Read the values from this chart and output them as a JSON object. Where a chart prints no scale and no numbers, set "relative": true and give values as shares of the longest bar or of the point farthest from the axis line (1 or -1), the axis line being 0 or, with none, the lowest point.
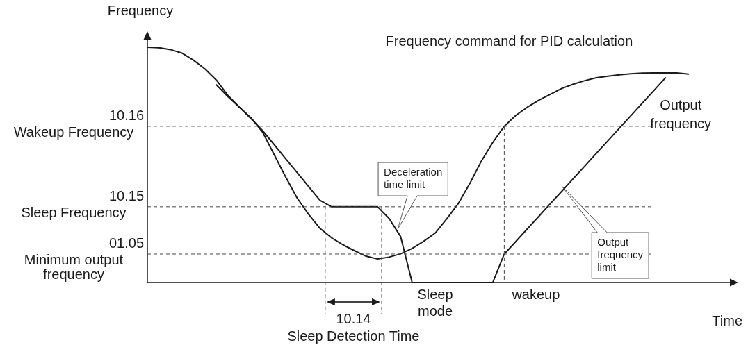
{
  "chart_data": {
    "type": "line",
    "relative": true,
    "xlabel": "Time",
    "ylabel": "Frequency",
    "categories": [
      null,
      null,
      null,
      null,
      null,
      null,
      null,
      null,
      null,
      null,
      null,
      null,
      null,
      null,
      null,
      null,
      null,
      null,
      null,
      null,
      null,
      null,
      null,
      null,
      null,
      null,
      null,
      null,
      null,
      null,
      null,
      null,
      null,
      null,
      null,
      null,
      null,
      null,
      null,
      null,
      null,
      null,
      null,
      null,
      null,
      null,
      null,
      null,
      null,
      null,
      null
    ],
    "series": [
      {
        "name": "Frequency command for PID calculation",
        "color": "#1a1a1a",
        "values": [
          1.0,
          0.998,
          0.99,
          0.975,
          0.945,
          0.908,
          0.86,
          0.795,
          0.745,
          0.7,
          0.64,
          0.545,
          0.45,
          0.36,
          0.29,
          0.23,
          0.19,
          0.16,
          0.135,
          0.112,
          0.1,
          0.108,
          0.122,
          0.145,
          0.175,
          0.21,
          0.27,
          0.335,
          0.42,
          0.515,
          0.595,
          0.664,
          0.71,
          0.745,
          0.775,
          0.8,
          0.825,
          0.843,
          0.858,
          0.87,
          0.877,
          0.883,
          0.887,
          0.89,
          0.891,
          0.891,
          0.891,
          0.886,
          null,
          null,
          null
        ]
      },
      {
        "name": "Output\nfrequency",
        "color": "#1a1a1a",
        "values": [
          null,
          null,
          null,
          null,
          null,
          null,
          0.84,
          0.79,
          0.745,
          0.697,
          0.646,
          0.587,
          0.527,
          0.468,
          0.408,
          0.349,
          0.322,
          0.322,
          0.322,
          0.322,
          0.322,
          0.272,
          0.195,
          0,
          0,
          0,
          0,
          0,
          0,
          0,
          0,
          0.121,
          0.174,
          0.228,
          0.281,
          0.335,
          0.388,
          0.442,
          0.495,
          0.549,
          0.602,
          0.656,
          0.709,
          0.763,
          0.816,
          0.87,
          null,
          null,
          null,
          null,
          null
        ]
      }
    ],
    "ref_lines": [
      {
        "axis": "y",
        "value": 0.664,
        "label": "10.16\nWakeup Frequency",
        "line_style": "dashed"
      },
      {
        "axis": "y",
        "value": 0.322,
        "label": "10.15\nSleep Frequency",
        "line_style": "dashed"
      },
      {
        "axis": "y",
        "value": 0.121,
        "label": "01.05\nMinimum output\nfrequency",
        "line_style": "dashed"
      }
    ],
    "annotations": [
      "Deceleration\ntime limit",
      "Output\nfrequency\nlimit",
      "Sleep\nmode",
      "wakeup",
      "10.14\nSleep Detection Time"
    ]
  }
}
